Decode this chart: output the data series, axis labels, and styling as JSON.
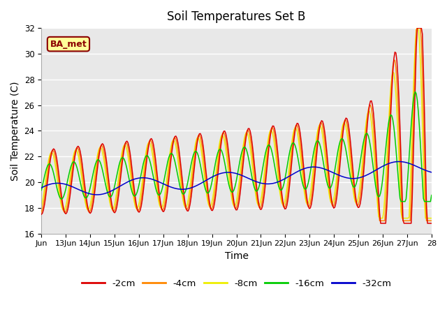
{
  "title": "Soil Temperatures Set B",
  "xlabel": "Time",
  "ylabel": "Soil Temperature (C)",
  "ylim": [
    16,
    32
  ],
  "yticks": [
    16,
    18,
    20,
    22,
    24,
    26,
    28,
    30,
    32
  ],
  "colors": {
    "2cm": "#dd0000",
    "4cm": "#ff8800",
    "8cm": "#eeee00",
    "16cm": "#00cc00",
    "32cm": "#0000cc"
  },
  "legend_labels": [
    "-2cm",
    "-4cm",
    "-8cm",
    "-16cm",
    "-32cm"
  ],
  "annotation_text": "BA_met",
  "annotation_color": "#8B0000",
  "annotation_bg": "#ffff99",
  "background_color": "#e8e8e8",
  "x_tick_labels": [
    "Jun",
    "13Jun",
    "14Jun",
    "15Jun",
    "16Jun",
    "17Jun",
    "18Jun",
    "19Jun",
    "20Jun",
    "21Jun",
    "22Jun",
    "23Jun",
    "24Jun",
    "25Jun",
    "26Jun",
    "27Jun",
    "28"
  ],
  "grid_color": "#ffffff"
}
